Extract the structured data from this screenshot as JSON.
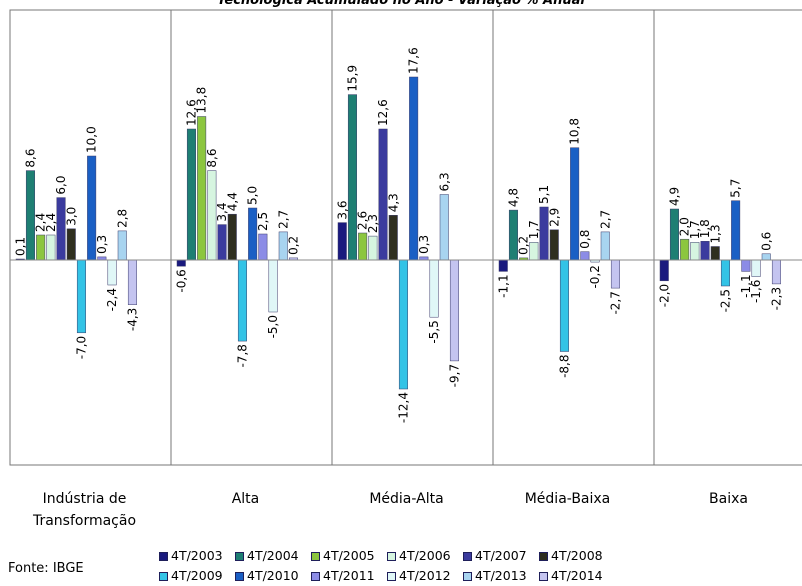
{
  "chart_data": {
    "type": "bar",
    "title": "Tecnológica Acumulado no Ano - Variação % Anual",
    "source": "Fonte: IBGE",
    "categories": [
      "Indústria de\nTransformação",
      "Alta",
      "Média-Alta",
      "Média-Baixa",
      "Baixa"
    ],
    "series": [
      {
        "name": "4T/2003",
        "color": "#1a1a7e",
        "values": [
          0.1,
          -0.6,
          3.6,
          -1.1,
          -2.0
        ]
      },
      {
        "name": "4T/2004",
        "color": "#1e7f73",
        "values": [
          8.6,
          12.6,
          15.9,
          4.8,
          4.9
        ]
      },
      {
        "name": "4T/2005",
        "color": "#8cc63f",
        "values": [
          2.4,
          13.8,
          2.6,
          0.2,
          2.0
        ]
      },
      {
        "name": "4T/2006",
        "color": "#d6f5e0",
        "values": [
          2.4,
          8.6,
          2.3,
          1.7,
          1.7
        ]
      },
      {
        "name": "4T/2007",
        "color": "#3b3b9e",
        "values": [
          6.0,
          3.4,
          12.6,
          5.1,
          1.8
        ]
      },
      {
        "name": "4T/2008",
        "color": "#2f2f1f",
        "values": [
          3.0,
          4.4,
          4.3,
          2.9,
          1.3
        ]
      },
      {
        "name": "4T/2009",
        "color": "#33c3e6",
        "values": [
          -7.0,
          -7.8,
          -12.4,
          -8.8,
          -2.5
        ]
      },
      {
        "name": "4T/2010",
        "color": "#1a5fc4",
        "values": [
          10.0,
          5.0,
          17.6,
          10.8,
          5.7
        ]
      },
      {
        "name": "4T/2011",
        "color": "#8c8ce6",
        "values": [
          0.3,
          2.5,
          0.3,
          0.8,
          -1.1
        ]
      },
      {
        "name": "4T/2012",
        "color": "#e0f7f7",
        "values": [
          -2.4,
          -5.0,
          -5.5,
          -0.2,
          -1.6
        ]
      },
      {
        "name": "4T/2013",
        "color": "#a8d4f0",
        "values": [
          2.8,
          2.7,
          6.3,
          2.7,
          0.6
        ]
      },
      {
        "name": "4T/2014",
        "color": "#c4c4f0",
        "values": [
          -4.3,
          0.2,
          -9.7,
          -2.7,
          -2.3
        ]
      }
    ],
    "ylim": [
      -20,
      22
    ],
    "grid": false,
    "legend_position": "bottom"
  }
}
